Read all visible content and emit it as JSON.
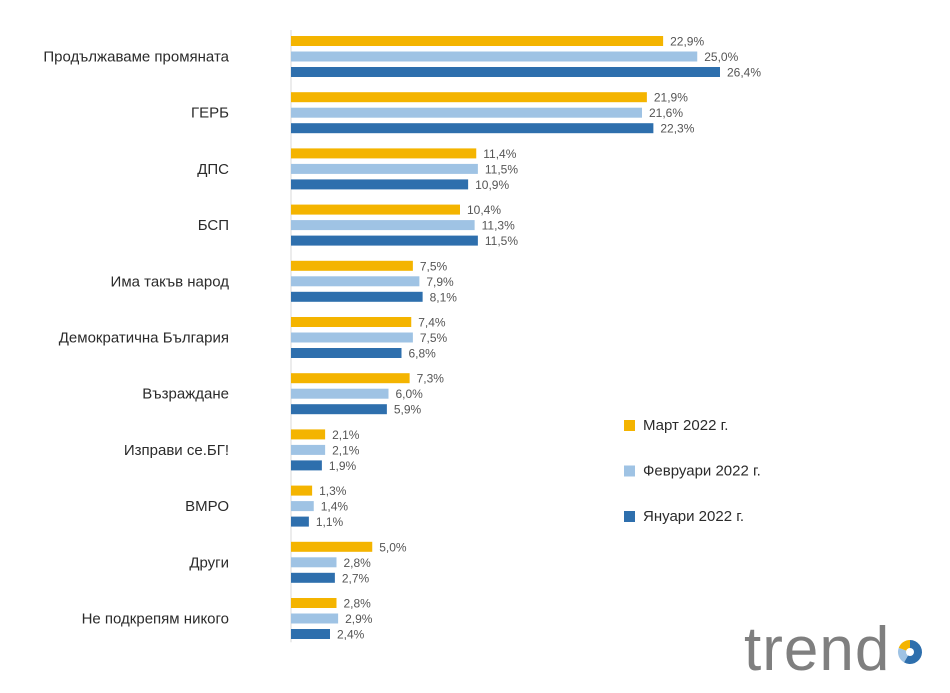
{
  "chart_data": {
    "type": "bar",
    "orientation": "horizontal",
    "categories": [
      "Продължаваме промяната",
      "ГЕРБ",
      "ДПС",
      "БСП",
      "Има такъв народ",
      "Демократична България",
      "Възраждане",
      "Изправи се.БГ!",
      "ВМРО",
      "Други",
      "Не подкрепям никого"
    ],
    "series": [
      {
        "name": "Март 2022 г.",
        "color": "#f4b400",
        "values": [
          22.9,
          21.9,
          11.4,
          10.4,
          7.5,
          7.4,
          7.3,
          2.1,
          1.3,
          5.0,
          2.8
        ],
        "labels": [
          "22,9%",
          "21,9%",
          "11,4%",
          "10,4%",
          "7,5%",
          "7,4%",
          "7,3%",
          "2,1%",
          "1,3%",
          "5,0%",
          "2,8%"
        ]
      },
      {
        "name": "Февруари 2022 г.",
        "color": "#9fc3e4",
        "values": [
          25.0,
          21.6,
          11.5,
          11.3,
          7.9,
          7.5,
          6.0,
          2.1,
          1.4,
          2.8,
          2.9
        ],
        "labels": [
          "25,0%",
          "21,6%",
          "11,5%",
          "11,3%",
          "7,9%",
          "7,5%",
          "6,0%",
          "2,1%",
          "1,4%",
          "2,8%",
          "2,9%"
        ]
      },
      {
        "name": "Януари 2022 г.",
        "color": "#2e6fad",
        "values": [
          26.4,
          22.3,
          10.9,
          11.5,
          8.1,
          6.8,
          5.9,
          1.9,
          1.1,
          2.7,
          2.4
        ],
        "labels": [
          "26,4%",
          "22,3%",
          "10,9%",
          "11,5%",
          "8,1%",
          "6,8%",
          "5,9%",
          "1,9%",
          "1,1%",
          "2,7%",
          "2,4%"
        ]
      }
    ],
    "xlim": [
      0,
      30
    ],
    "grid": false,
    "legend_position": "right"
  },
  "logo": {
    "text": "trend",
    "ring_colors": [
      "#2e6fad",
      "#9fc3e4",
      "#f4b400"
    ]
  }
}
